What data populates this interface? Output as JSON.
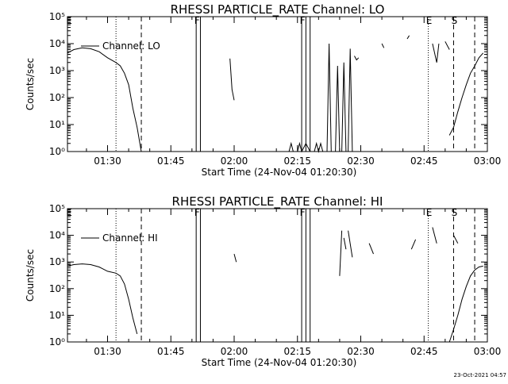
{
  "stamp": "23-Oct-2021 04:57",
  "panels": [
    {
      "title": "RHESSI PARTICLE_RATE Channel: LO",
      "xlabel": "Start Time (24-Nov-04 01:20:30)",
      "ylabel": "Counts/sec",
      "legend": "Channel: LO",
      "xticks": [
        "01:30",
        "01:45",
        "02:00",
        "02:15",
        "02:30",
        "02:45",
        "03:00"
      ],
      "yticks": [
        "10⁰",
        "10¹",
        "10²",
        "10³",
        "10⁴",
        "10⁵"
      ],
      "letters": [
        "E",
        "F",
        "F",
        "E",
        "S"
      ]
    },
    {
      "title": "RHESSI PARTICLE_RATE Channel: HI",
      "xlabel": "Start Time (24-Nov-04 01:20:30)",
      "ylabel": "Counts/sec",
      "legend": "Channel: HI",
      "xticks": [
        "01:30",
        "01:45",
        "02:00",
        "02:15",
        "02:30",
        "02:45",
        "03:00"
      ],
      "yticks": [
        "10⁰",
        "10¹",
        "10²",
        "10³",
        "10⁴",
        "10⁵"
      ],
      "letters": [
        "E",
        "F",
        "F",
        "E",
        "S"
      ]
    }
  ],
  "chart_data": [
    {
      "type": "line",
      "title": "RHESSI PARTICLE_RATE Channel: LO",
      "xlabel": "Start Time (24-Nov-04 01:20:30)",
      "ylabel": "Counts/sec",
      "yscale": "log",
      "xlim": [
        "01:20:30",
        "03:00:00"
      ],
      "ylim": [
        1,
        100000
      ],
      "grid": false,
      "legend_position": "top-left",
      "series": [
        {
          "name": "Channel: LO",
          "segments": [
            [
              [
                "01:20:30",
                4500
              ],
              [
                "01:22",
                6000
              ],
              [
                "01:24",
                7000
              ],
              [
                "01:26",
                6500
              ],
              [
                "01:28",
                5000
              ],
              [
                "01:30",
                3000
              ],
              [
                "01:32",
                2000
              ],
              [
                "01:33",
                1500
              ],
              [
                "01:34",
                800
              ],
              [
                "01:35",
                300
              ],
              [
                "01:36",
                40
              ],
              [
                "01:37",
                8
              ],
              [
                "01:38",
                1
              ]
            ],
            [
              [
                "01:59",
                2800
              ],
              [
                "01:59:30",
                200
              ],
              [
                "02:00",
                80
              ]
            ],
            [
              [
                "02:13",
                1
              ],
              [
                "02:13:30",
                2
              ],
              [
                "02:14",
                1
              ]
            ],
            [
              [
                "02:15",
                1
              ],
              [
                "02:15:30",
                2
              ],
              [
                "02:16",
                1
              ],
              [
                "02:17",
                2
              ],
              [
                "02:18",
                1
              ]
            ],
            [
              [
                "02:19",
                1
              ],
              [
                "02:19:30",
                2
              ],
              [
                "02:20",
                1
              ],
              [
                "02:20:30",
                2
              ],
              [
                "02:21",
                1
              ]
            ],
            [
              [
                "02:22",
                1
              ],
              [
                "02:22:30",
                10000
              ],
              [
                "02:23",
                1
              ]
            ],
            [
              [
                "02:24",
                1
              ],
              [
                "02:24:30",
                1500
              ],
              [
                "02:25",
                1
              ]
            ],
            [
              [
                "02:25:30",
                1
              ],
              [
                "02:26",
                2000
              ],
              [
                "02:26:30",
                1
              ]
            ],
            [
              [
                "02:27",
                1
              ],
              [
                "02:27:30",
                6500
              ],
              [
                "02:28",
                1
              ]
            ],
            [
              [
                "02:28:30",
                3500
              ],
              [
                "02:29",
                2500
              ],
              [
                "02:29:30",
                3000
              ]
            ],
            [
              [
                "02:35",
                10000
              ],
              [
                "02:35:30",
                7000
              ]
            ],
            [
              [
                "02:41",
                15000
              ],
              [
                "02:41:30",
                20000
              ]
            ],
            [
              [
                "02:47",
                10000
              ],
              [
                "02:48",
                2000
              ],
              [
                "02:48:30",
                10000
              ]
            ],
            [
              [
                "02:50",
                12000
              ],
              [
                "02:51",
                6000
              ]
            ],
            [
              [
                "02:51",
                4
              ],
              [
                "02:52",
                8
              ],
              [
                "02:53",
                30
              ],
              [
                "02:54",
                100
              ],
              [
                "02:55",
                300
              ],
              [
                "02:56",
                800
              ],
              [
                "02:57",
                1500
              ],
              [
                "02:58",
                3000
              ],
              [
                "02:59",
                4500
              ]
            ]
          ]
        }
      ],
      "vertical_markers": [
        {
          "time": "01:32",
          "style": "dotted",
          "label": ""
        },
        {
          "time": "01:38",
          "style": "dashed",
          "label": ""
        },
        {
          "time": "01:51",
          "style": "solid",
          "label": "F"
        },
        {
          "time": "01:52",
          "style": "solid",
          "label": ""
        },
        {
          "time": "02:16",
          "style": "solid",
          "label": "F"
        },
        {
          "time": "02:17",
          "style": "solid",
          "label": ""
        },
        {
          "time": "02:18",
          "style": "solid",
          "label": ""
        },
        {
          "time": "02:46",
          "style": "dotted",
          "label": "E"
        },
        {
          "time": "02:52",
          "style": "dashed",
          "label": "S"
        },
        {
          "time": "02:57",
          "style": "dashed",
          "label": ""
        }
      ]
    },
    {
      "type": "line",
      "title": "RHESSI PARTICLE_RATE Channel: HI",
      "xlabel": "Start Time (24-Nov-04 01:20:30)",
      "ylabel": "Counts/sec",
      "yscale": "log",
      "xlim": [
        "01:20:30",
        "03:00:00"
      ],
      "ylim": [
        1,
        100000
      ],
      "grid": false,
      "legend_position": "top-left",
      "series": [
        {
          "name": "Channel: HI",
          "segments": [
            [
              [
                "01:20:30",
                700
              ],
              [
                "01:22",
                800
              ],
              [
                "01:24",
                850
              ],
              [
                "01:26",
                800
              ],
              [
                "01:28",
                650
              ],
              [
                "01:30",
                450
              ],
              [
                "01:32",
                380
              ],
              [
                "01:33",
                300
              ],
              [
                "01:34",
                150
              ],
              [
                "01:35",
                40
              ],
              [
                "01:36",
                8
              ],
              [
                "01:37",
                2
              ]
            ],
            [
              [
                "02:00",
                2000
              ],
              [
                "02:00:30",
                1000
              ]
            ],
            [
              [
                "02:25",
                300
              ],
              [
                "02:25:30",
                15000
              ]
            ],
            [
              [
                "02:26",
                8000
              ],
              [
                "02:26:30",
                3000
              ]
            ],
            [
              [
                "02:27",
                15000
              ],
              [
                "02:28",
                1500
              ]
            ],
            [
              [
                "02:32",
                5000
              ],
              [
                "02:33",
                2000
              ]
            ],
            [
              [
                "02:42",
                3000
              ],
              [
                "02:43",
                7000
              ]
            ],
            [
              [
                "02:47",
                20000
              ],
              [
                "02:48",
                5000
              ]
            ],
            [
              [
                "02:52",
                10000
              ],
              [
                "02:53",
                5000
              ]
            ],
            [
              [
                "02:51",
                1
              ],
              [
                "02:52",
                3
              ],
              [
                "02:53",
                10
              ],
              [
                "02:54",
                40
              ],
              [
                "02:55",
                120
              ],
              [
                "02:56",
                300
              ],
              [
                "02:57",
                500
              ],
              [
                "02:58",
                650
              ],
              [
                "02:59",
                700
              ]
            ]
          ]
        }
      ],
      "vertical_markers": [
        {
          "time": "01:32",
          "style": "dotted",
          "label": ""
        },
        {
          "time": "01:38",
          "style": "dashed",
          "label": ""
        },
        {
          "time": "01:51",
          "style": "solid",
          "label": "F"
        },
        {
          "time": "01:52",
          "style": "solid",
          "label": ""
        },
        {
          "time": "02:16",
          "style": "solid",
          "label": "F"
        },
        {
          "time": "02:17",
          "style": "solid",
          "label": ""
        },
        {
          "time": "02:18",
          "style": "solid",
          "label": ""
        },
        {
          "time": "02:46",
          "style": "dotted",
          "label": "E"
        },
        {
          "time": "02:52",
          "style": "dashed",
          "label": "S"
        },
        {
          "time": "02:57",
          "style": "dashed",
          "label": ""
        }
      ]
    }
  ]
}
